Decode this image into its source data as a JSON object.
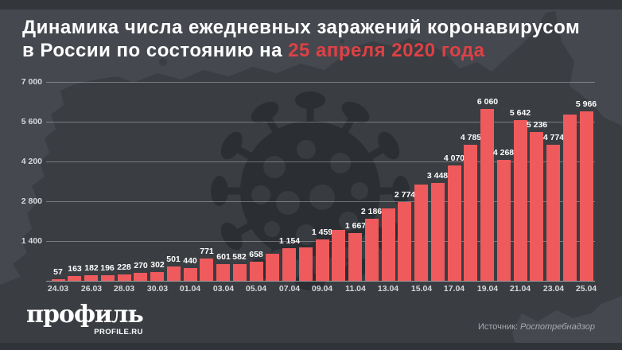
{
  "title": {
    "line1": "Динамика числа ежедневных заражений коронавирусом",
    "line2_prefix": "в России по состоянию на ",
    "line2_highlight": "25 апреля 2020 года"
  },
  "colors": {
    "background": "#45484e",
    "map_silhouette": "#3a3d42",
    "virus_silhouette": "#2b2e33",
    "bar": "#ef5a5c",
    "title_text": "#ffffff",
    "highlight_red": "#dd4145",
    "axis_text": "#d6d8db",
    "grid_line": "#8f9296",
    "source_text": "#a7abb0"
  },
  "chart_data": {
    "type": "bar",
    "x": [
      "24.03",
      "25.03",
      "26.03",
      "27.03",
      "28.03",
      "29.03",
      "30.03",
      "31.03",
      "01.04",
      "02.04",
      "03.04",
      "04.04",
      "05.04",
      "06.04",
      "07.04",
      "08.04",
      "09.04",
      "10.04",
      "11.04",
      "12.04",
      "13.04",
      "14.04",
      "15.04",
      "16.04",
      "17.04",
      "18.04",
      "19.04",
      "20.04",
      "21.04",
      "22.04",
      "23.04",
      "24.04",
      "25.04"
    ],
    "values": [
      57,
      163,
      182,
      196,
      228,
      270,
      302,
      501,
      440,
      771,
      601,
      582,
      658,
      954,
      1154,
      1175,
      1459,
      1786,
      1667,
      2186,
      2558,
      2774,
      3388,
      3448,
      4070,
      4785,
      6060,
      4268,
      5642,
      5236,
      4774,
      5849,
      5966
    ],
    "bar_labels": [
      "57",
      "163",
      "182",
      "196",
      "228",
      "270",
      "302",
      "501",
      "440",
      "771",
      "601",
      "582",
      "658",
      null,
      "1 154",
      null,
      "1 459",
      null,
      "1 667",
      "2 186",
      null,
      "2 774",
      null,
      "3 448",
      "4 070",
      "4 785",
      "6 060",
      "4 268",
      "5 642",
      "5 236",
      "4 774",
      null,
      "5 966"
    ],
    "x_tick_labels": [
      "24.03",
      "26.03",
      "28.03",
      "30.03",
      "01.04",
      "03.04",
      "05.04",
      "07.04",
      "09.04",
      "11.04",
      "13.04",
      "15.04",
      "17.04",
      "19.04",
      "21.04",
      "23.04",
      "25.04"
    ],
    "y_ticks": [
      {
        "value": 7000,
        "label": "7 000"
      },
      {
        "value": 5600,
        "label": "5 600"
      },
      {
        "value": 4200,
        "label": "4 200"
      },
      {
        "value": 2800,
        "label": "2 800"
      },
      {
        "value": 1400,
        "label": "1 400"
      }
    ],
    "ylim": [
      0,
      7000
    ],
    "grid": true,
    "legend": false,
    "title": "Динамика числа ежедневных заражений коронавирусом в России по состоянию на 25 апреля 2020 года",
    "xlabel": "",
    "ylabel": ""
  },
  "footer": {
    "logo_main": "профиль",
    "logo_sub": "PROFILE.RU",
    "source_prefix": "Источник:",
    "source_name": "Роспотребнадзор"
  }
}
